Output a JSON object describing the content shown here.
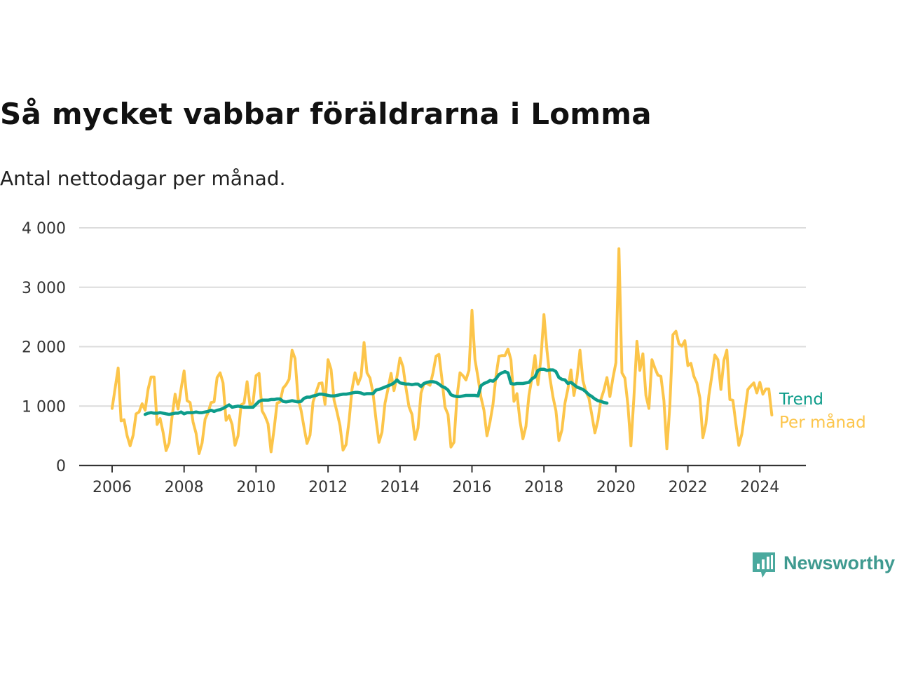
{
  "title": "Så mycket vabbar föräldrarna i Lomma",
  "subtitle": "Antal nettodagar per månad.",
  "brand": {
    "name": "Newsworthy",
    "icon": "newsworthy-bar-chart-icon",
    "color": "#3f9a90"
  },
  "chart_data": {
    "type": "line",
    "xlim": [
      2006,
      2024.33
    ],
    "ylim": [
      0,
      4000
    ],
    "x_ticks": [
      "2006",
      "2008",
      "2010",
      "2012",
      "2014",
      "2016",
      "2018",
      "2020",
      "2022",
      "2024"
    ],
    "y_ticks": [
      "0",
      "1 000",
      "2 000",
      "3 000",
      "4 000"
    ],
    "grid": true,
    "legend": "inline-right",
    "start_year": 2006,
    "series": [
      {
        "name": "Per månad",
        "color": "#fcc54a",
        "start": "2006-01",
        "values": [
          960,
          1300,
          1640,
          750,
          770,
          500,
          330,
          510,
          870,
          900,
          1040,
          930,
          1280,
          1490,
          1490,
          690,
          790,
          560,
          250,
          380,
          830,
          1200,
          950,
          1290,
          1590,
          1090,
          1060,
          730,
          540,
          200,
          380,
          780,
          890,
          1060,
          1070,
          1480,
          1560,
          1390,
          760,
          840,
          690,
          340,
          500,
          1020,
          1050,
          1410,
          1000,
          1060,
          1510,
          1550,
          920,
          830,
          700,
          230,
          610,
          1050,
          1070,
          1300,
          1360,
          1450,
          1940,
          1800,
          1130,
          930,
          640,
          370,
          510,
          1070,
          1230,
          1380,
          1390,
          1030,
          1780,
          1620,
          1100,
          900,
          670,
          260,
          350,
          750,
          1280,
          1560,
          1370,
          1500,
          2070,
          1560,
          1470,
          1220,
          770,
          390,
          560,
          1050,
          1290,
          1550,
          1260,
          1500,
          1810,
          1660,
          1300,
          990,
          860,
          440,
          630,
          1220,
          1380,
          1380,
          1350,
          1560,
          1840,
          1870,
          1450,
          980,
          860,
          310,
          390,
          1150,
          1560,
          1510,
          1440,
          1600,
          2610,
          1780,
          1480,
          1150,
          930,
          500,
          730,
          1030,
          1500,
          1840,
          1850,
          1850,
          1960,
          1780,
          1080,
          1210,
          750,
          450,
          660,
          1180,
          1480,
          1850,
          1360,
          1810,
          2540,
          1940,
          1470,
          1160,
          920,
          420,
          600,
          1050,
          1290,
          1610,
          1180,
          1470,
          1940,
          1430,
          1240,
          1130,
          840,
          550,
          760,
          1110,
          1270,
          1480,
          1160,
          1470,
          1730,
          3650,
          1560,
          1470,
          1020,
          330,
          1150,
          2090,
          1600,
          1880,
          1180,
          960,
          1780,
          1640,
          1520,
          1500,
          1090,
          280,
          1020,
          2200,
          2260,
          2050,
          2010,
          2100,
          1680,
          1720,
          1500,
          1390,
          1140,
          470,
          700,
          1180,
          1510,
          1860,
          1780,
          1280,
          1770,
          1940,
          1110,
          1100,
          700,
          340,
          530,
          900,
          1280,
          1340,
          1390,
          1220,
          1400,
          1200,
          1290,
          1290,
          850
        ]
      },
      {
        "name": "Trend",
        "color": "#0d9c8a",
        "start": "2006-12",
        "values": [
          860,
          880,
          890,
          880,
          880,
          890,
          880,
          870,
          860,
          870,
          880,
          880,
          900,
          870,
          890,
          890,
          890,
          900,
          890,
          890,
          900,
          910,
          930,
          910,
          930,
          940,
          960,
          990,
          1020,
          980,
          990,
          1000,
          990,
          980,
          980,
          980,
          980,
          1030,
          1080,
          1100,
          1100,
          1100,
          1110,
          1110,
          1120,
          1120,
          1080,
          1070,
          1080,
          1090,
          1080,
          1070,
          1080,
          1130,
          1150,
          1150,
          1170,
          1180,
          1200,
          1200,
          1190,
          1180,
          1170,
          1170,
          1180,
          1190,
          1200,
          1200,
          1210,
          1220,
          1230,
          1230,
          1220,
          1200,
          1210,
          1210,
          1210,
          1270,
          1280,
          1300,
          1320,
          1340,
          1360,
          1390,
          1440,
          1390,
          1380,
          1370,
          1370,
          1360,
          1370,
          1370,
          1330,
          1380,
          1400,
          1410,
          1410,
          1400,
          1370,
          1330,
          1310,
          1270,
          1190,
          1170,
          1160,
          1160,
          1170,
          1180,
          1180,
          1180,
          1180,
          1170,
          1340,
          1380,
          1400,
          1430,
          1420,
          1460,
          1530,
          1560,
          1580,
          1560,
          1380,
          1370,
          1380,
          1380,
          1380,
          1390,
          1400,
          1460,
          1490,
          1600,
          1620,
          1620,
          1600,
          1610,
          1610,
          1580,
          1480,
          1450,
          1440,
          1380,
          1400,
          1360,
          1320,
          1300,
          1280,
          1240,
          1190,
          1160,
          1120,
          1090,
          1080,
          1060,
          1050
        ]
      }
    ]
  }
}
